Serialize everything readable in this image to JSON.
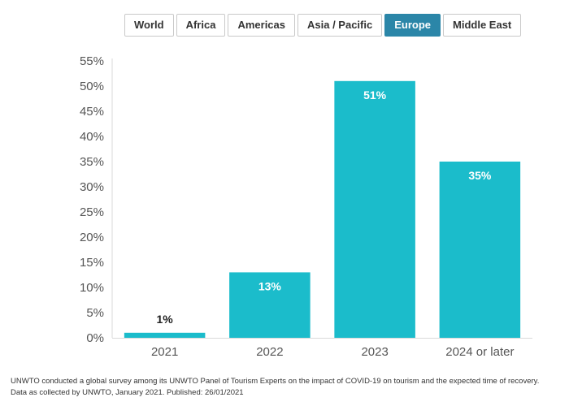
{
  "tabs": {
    "items": [
      "World",
      "Africa",
      "Americas",
      "Asia / Pacific",
      "Europe",
      "Middle East"
    ],
    "active": "Europe"
  },
  "colors": {
    "bar": "#1bbccb",
    "active_tab": "#2b86a8",
    "axis_text": "#555555",
    "grid": "#e6e6e6"
  },
  "chart_data": {
    "type": "bar",
    "categories": [
      "2021",
      "2022",
      "2023",
      "2024 or later"
    ],
    "values": [
      1,
      13,
      51,
      35
    ],
    "data_labels": [
      "1%",
      "13%",
      "51%",
      "35%"
    ],
    "y_ticks": [
      "0%",
      "5%",
      "10%",
      "15%",
      "20%",
      "25%",
      "30%",
      "35%",
      "40%",
      "45%",
      "50%",
      "55%"
    ],
    "ylim": [
      0,
      55
    ],
    "title": "",
    "xlabel": "",
    "ylabel": "",
    "grid": false
  },
  "footnote": {
    "line1": "UNWTO conducted a global survey among its UNWTO Panel of Tourism Experts on the impact of COVID-19 on tourism and the expected time of recovery.",
    "line2": "Data as collected by UNWTO, January 2021. Published: 26/01/2021"
  }
}
